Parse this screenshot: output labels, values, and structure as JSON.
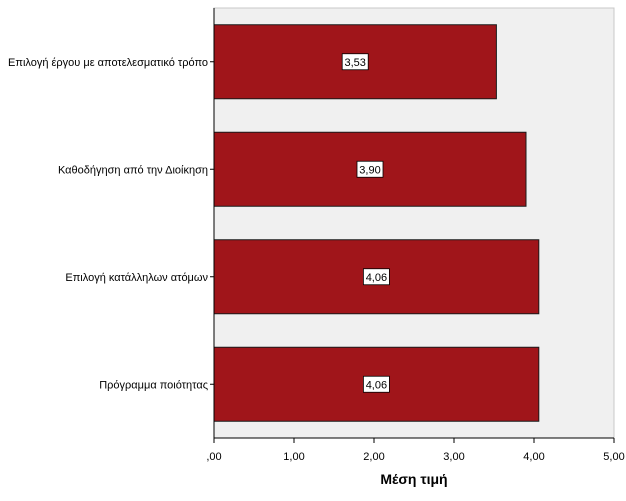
{
  "chart_data": {
    "type": "bar",
    "orientation": "horizontal",
    "categories": [
      "Επιλογή έργου με αποτελεσματικό τρόπο",
      "Καθοδήγηση από την Διοίκηση",
      "Επιλογή κατάλληλων ατόμων",
      "Πρόγραμμα ποιότητας"
    ],
    "values": [
      3.53,
      3.9,
      4.06,
      4.06
    ],
    "data_labels": [
      "3,53",
      "3,90",
      "4,06",
      "4,06"
    ],
    "xlabel": "Μέση τιμή",
    "ylabel": "",
    "xlim": [
      0,
      5
    ],
    "x_ticks": [
      0,
      1,
      2,
      3,
      4,
      5
    ],
    "x_tick_labels": [
      ",00",
      "1,00",
      "2,00",
      "3,00",
      "4,00",
      "5,00"
    ],
    "grid": false,
    "legend": "none",
    "colors": {
      "bar_fill": "#A0151A",
      "bar_stroke": "#1a1a1a",
      "plot_background": "#F0F0F0",
      "axis": "#000000"
    }
  }
}
